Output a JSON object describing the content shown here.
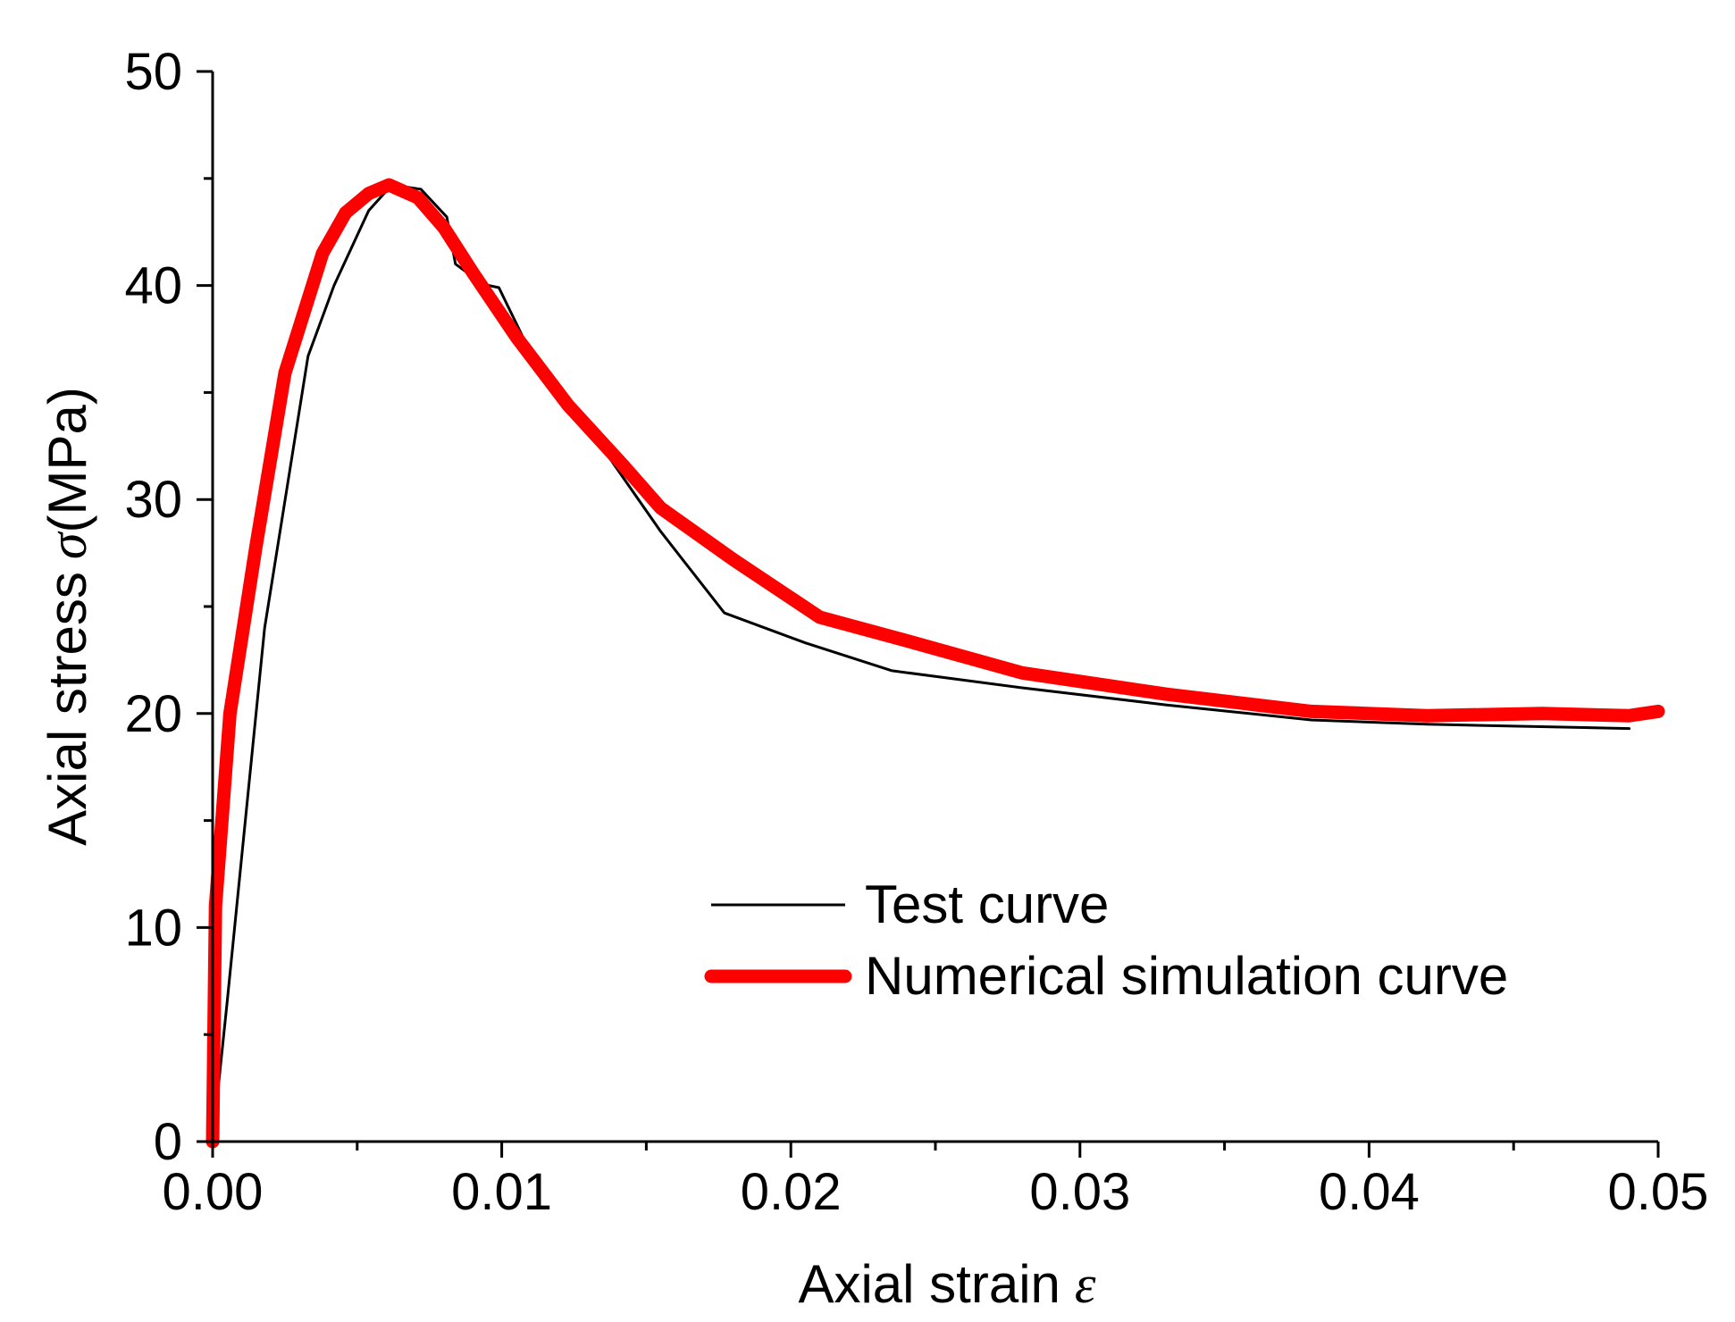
{
  "chart_data": {
    "type": "line",
    "title": "",
    "xlabel": "Axial strain",
    "xlabel_symbol": "ε",
    "ylabel": "Axial stress",
    "ylabel_symbol": "σ",
    "ylabel_unit": "(MPa)",
    "xlim": [
      0,
      0.05
    ],
    "ylim": [
      0,
      50
    ],
    "x_ticks": [
      0.0,
      0.01,
      0.02,
      0.03,
      0.04,
      0.05
    ],
    "x_tick_labels": [
      "0.00",
      "0.01",
      "0.02",
      "0.03",
      "0.04",
      "0.05"
    ],
    "x_minor_step": 0.005,
    "y_ticks": [
      0,
      10,
      20,
      30,
      40,
      50
    ],
    "y_tick_labels": [
      "0",
      "10",
      "20",
      "30",
      "40",
      "50"
    ],
    "y_minor_step": 5,
    "grid": false,
    "legend_position": "center-right",
    "series": [
      {
        "name": "Test curve",
        "color": "#000000",
        "style": "thin",
        "points": [
          [
            0.0,
            0.0
          ],
          [
            0.0005,
            6.5
          ],
          [
            0.0018,
            24.0
          ],
          [
            0.0033,
            36.7
          ],
          [
            0.0042,
            40.0
          ],
          [
            0.0054,
            43.5
          ],
          [
            0.0062,
            44.7
          ],
          [
            0.0072,
            44.5
          ],
          [
            0.0081,
            43.2
          ],
          [
            0.0084,
            41.0
          ],
          [
            0.0088,
            40.6
          ],
          [
            0.0092,
            40.1
          ],
          [
            0.0099,
            39.9
          ],
          [
            0.0108,
            37.4
          ],
          [
            0.0122,
            34.6
          ],
          [
            0.0138,
            31.8
          ],
          [
            0.0155,
            28.5
          ],
          [
            0.0177,
            24.7
          ],
          [
            0.0205,
            23.3
          ],
          [
            0.0235,
            22.0
          ],
          [
            0.028,
            21.2
          ],
          [
            0.033,
            20.4
          ],
          [
            0.038,
            19.7
          ],
          [
            0.042,
            19.5
          ],
          [
            0.049,
            19.3
          ]
        ]
      },
      {
        "name": "Numerical simulation curve",
        "color": "#ff0000",
        "style": "thick",
        "points": [
          [
            0.0,
            0.0
          ],
          [
            0.0001,
            11.0
          ],
          [
            0.0006,
            20.0
          ],
          [
            0.0015,
            27.8
          ],
          [
            0.0025,
            35.9
          ],
          [
            0.0038,
            41.5
          ],
          [
            0.0046,
            43.4
          ],
          [
            0.0054,
            44.3
          ],
          [
            0.0061,
            44.7
          ],
          [
            0.0071,
            44.1
          ],
          [
            0.008,
            42.7
          ],
          [
            0.009,
            40.6
          ],
          [
            0.0105,
            37.6
          ],
          [
            0.0123,
            34.4
          ],
          [
            0.0142,
            31.6
          ],
          [
            0.0155,
            29.6
          ],
          [
            0.018,
            27.2
          ],
          [
            0.021,
            24.5
          ],
          [
            0.024,
            23.4
          ],
          [
            0.028,
            21.9
          ],
          [
            0.033,
            20.9
          ],
          [
            0.038,
            20.1
          ],
          [
            0.042,
            19.9
          ],
          [
            0.046,
            20.0
          ],
          [
            0.049,
            19.9
          ],
          [
            0.05,
            20.1
          ]
        ]
      }
    ]
  }
}
